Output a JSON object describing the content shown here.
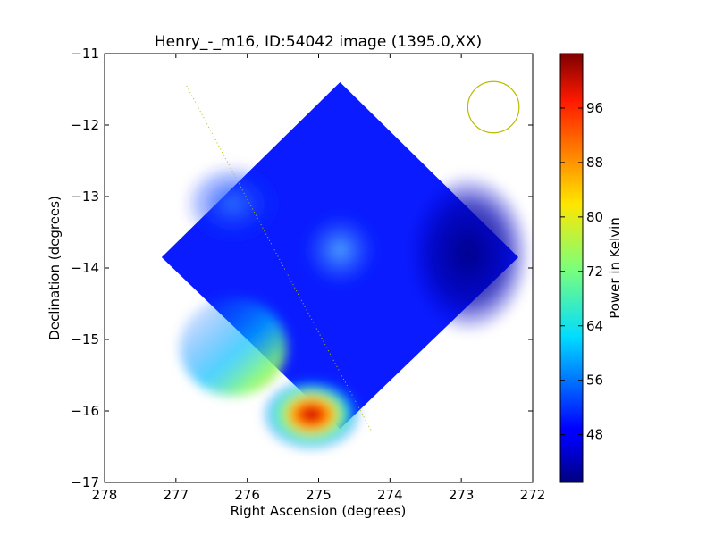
{
  "chart_data": {
    "type": "heatmap",
    "title": "Henry_-_m16, ID:54042 image (1395.0,XX)",
    "xlabel": "Right Ascension (degrees)",
    "ylabel": "Declination (degrees)",
    "xlim": [
      278,
      272
    ],
    "ylim": [
      -17,
      -11
    ],
    "x_ticks": [
      "278",
      "277",
      "276",
      "275",
      "274",
      "273",
      "272"
    ],
    "y_ticks": [
      "−11",
      "−12",
      "−13",
      "−14",
      "−15",
      "−16",
      "−17"
    ],
    "colorbar": {
      "label": "Power in Kelvin",
      "range": [
        41,
        104
      ],
      "ticks": [
        "48",
        "56",
        "64",
        "72",
        "80",
        "88",
        "96"
      ],
      "colormap": "jet"
    },
    "map_region": {
      "shape": "diamond",
      "vertices_ra_dec": [
        [
          274.7,
          -11.4
        ],
        [
          272.2,
          -13.85
        ],
        [
          274.7,
          -16.25
        ],
        [
          277.2,
          -13.85
        ]
      ],
      "background_K": 46,
      "features": [
        {
          "ra": 274.7,
          "dec": -13.75,
          "power_K": 53,
          "note": "local peak near center"
        },
        {
          "ra": 276.2,
          "dec": -13.1,
          "power_K": 51,
          "note": "faint enhancement"
        },
        {
          "ra": 272.9,
          "dec": -13.8,
          "power_K": 42,
          "note": "minimum on east edge"
        },
        {
          "ra": 275.1,
          "dec": -16.05,
          "power_K": 104,
          "note": "maximum at southern corner"
        },
        {
          "ra": 276.2,
          "dec": -15.1,
          "power_K": 70,
          "note": "elevated southwest edge"
        }
      ]
    },
    "overlays": {
      "dotted_line": {
        "color": "#bbbb00",
        "from_ra_dec": [
          276.85,
          -11.45
        ],
        "to_ra_dec": [
          274.25,
          -16.3
        ]
      },
      "beam_circle": {
        "color": "#bbbb00",
        "center_ra_dec": [
          272.55,
          -11.75
        ],
        "radius_deg": 0.36
      }
    },
    "grid": false,
    "legend": "none"
  }
}
